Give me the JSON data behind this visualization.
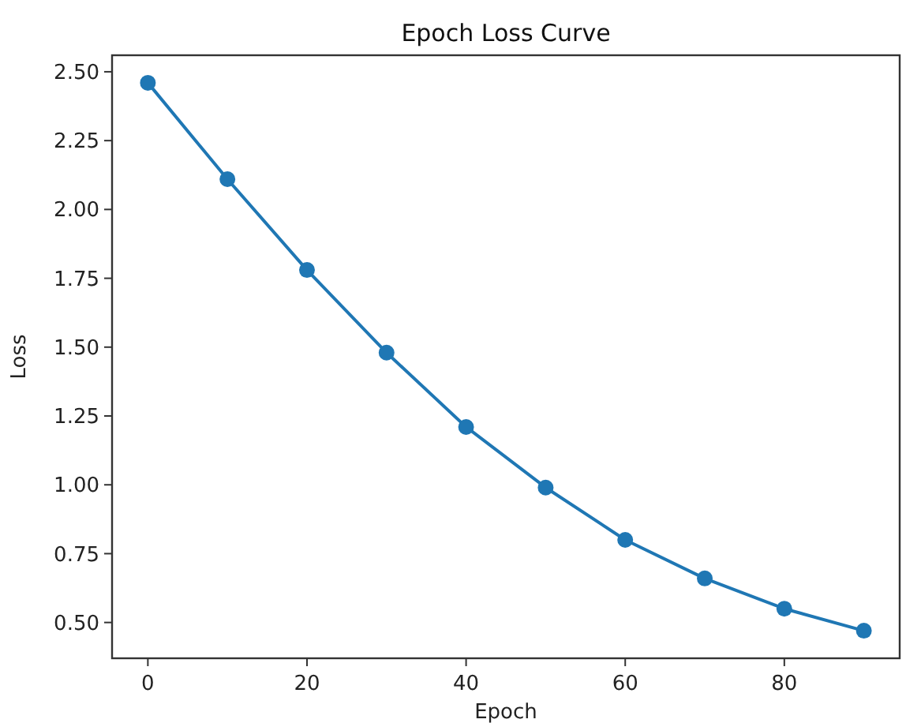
{
  "chart_data": {
    "type": "line",
    "title": "Epoch Loss Curve",
    "xlabel": "Epoch",
    "ylabel": "Loss",
    "x": [
      0,
      10,
      20,
      30,
      40,
      50,
      60,
      70,
      80,
      90
    ],
    "series": [
      {
        "color": "#1f77b4",
        "values": [
          2.46,
          2.11,
          1.78,
          1.48,
          1.21,
          0.99,
          0.8,
          0.66,
          0.55,
          0.47
        ]
      }
    ],
    "xlim": [
      -4.5,
      94.5
    ],
    "xticks": [
      0,
      20,
      40,
      60,
      80
    ],
    "ylim": [
      0.37,
      2.56
    ],
    "yticks": [
      {
        "value": 0.5,
        "label": "0.50"
      },
      {
        "value": 0.75,
        "label": "0.75"
      },
      {
        "value": 1,
        "label": "1.00"
      },
      {
        "value": 1.25,
        "label": "1.25"
      },
      {
        "value": 1.5,
        "label": "1.50"
      },
      {
        "value": 1.75,
        "label": "1.75"
      },
      {
        "value": 2,
        "label": "2.00"
      },
      {
        "value": 2.25,
        "label": "2.25"
      },
      {
        "value": 2.5,
        "label": "2.50"
      }
    ],
    "marker": "circle",
    "line_style": "solid",
    "grid": false
  }
}
